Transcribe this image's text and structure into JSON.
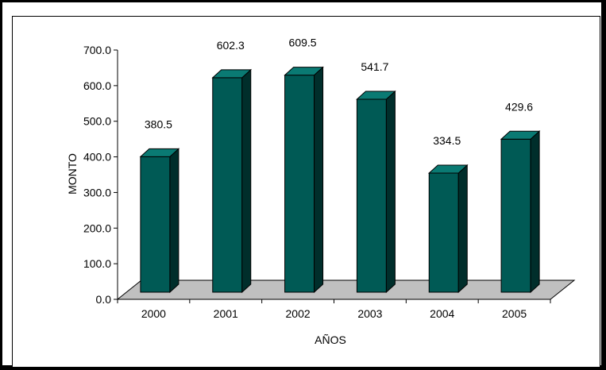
{
  "chart_data": {
    "type": "bar",
    "categories": [
      "2000",
      "2001",
      "2002",
      "2003",
      "2004",
      "2005"
    ],
    "values": [
      380.5,
      602.3,
      609.5,
      541.7,
      334.5,
      429.6
    ],
    "data_labels": [
      "380.5",
      "602.3",
      "609.5",
      "541.7",
      "334.5",
      "429.6"
    ],
    "title": "",
    "xlabel": "AÑOS",
    "ylabel": "MONTO",
    "ylim": [
      0,
      700
    ],
    "yticks": [
      "0.0",
      "100.0",
      "200.0",
      "300.0",
      "400.0",
      "500.0",
      "600.0",
      "700.0"
    ],
    "grid": false,
    "legend": "none",
    "bar_colors": {
      "front": "#005a55",
      "side": "#002e2b",
      "top": "#0a7a73"
    },
    "floor_color": "#c0c0c0"
  }
}
